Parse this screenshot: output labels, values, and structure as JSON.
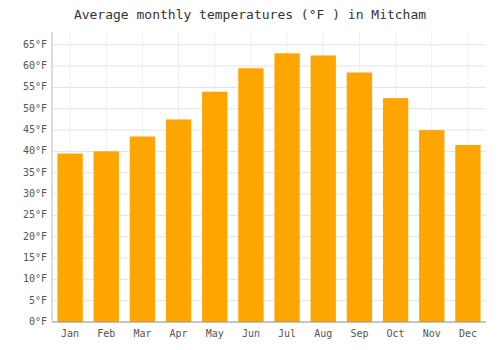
{
  "chart_data": {
    "type": "bar",
    "title": "Average monthly temperatures (°F ) in Mitcham",
    "categories": [
      "Jan",
      "Feb",
      "Mar",
      "Apr",
      "May",
      "Jun",
      "Jul",
      "Aug",
      "Sep",
      "Oct",
      "Nov",
      "Dec"
    ],
    "values": [
      39.5,
      40.0,
      43.5,
      47.5,
      54.0,
      59.5,
      63.0,
      62.5,
      58.5,
      52.5,
      45.0,
      41.5
    ],
    "color": "#FFA500",
    "ylim": [
      0,
      68
    ],
    "yticks": [
      {
        "value": 0,
        "label": "0°F"
      },
      {
        "value": 5,
        "label": "5°F"
      },
      {
        "value": 10,
        "label": "10°F"
      },
      {
        "value": 15,
        "label": "15°F"
      },
      {
        "value": 20,
        "label": "20°F"
      },
      {
        "value": 25,
        "label": "25°F"
      },
      {
        "value": 30,
        "label": "30°F"
      },
      {
        "value": 35,
        "label": "35°F"
      },
      {
        "value": 40,
        "label": "40°F"
      },
      {
        "value": 45,
        "label": "45°F"
      },
      {
        "value": 50,
        "label": "50°F"
      },
      {
        "value": 55,
        "label": "55°F"
      },
      {
        "value": 60,
        "label": "60°F"
      },
      {
        "value": 65,
        "label": "65°F"
      }
    ],
    "grid": true
  }
}
